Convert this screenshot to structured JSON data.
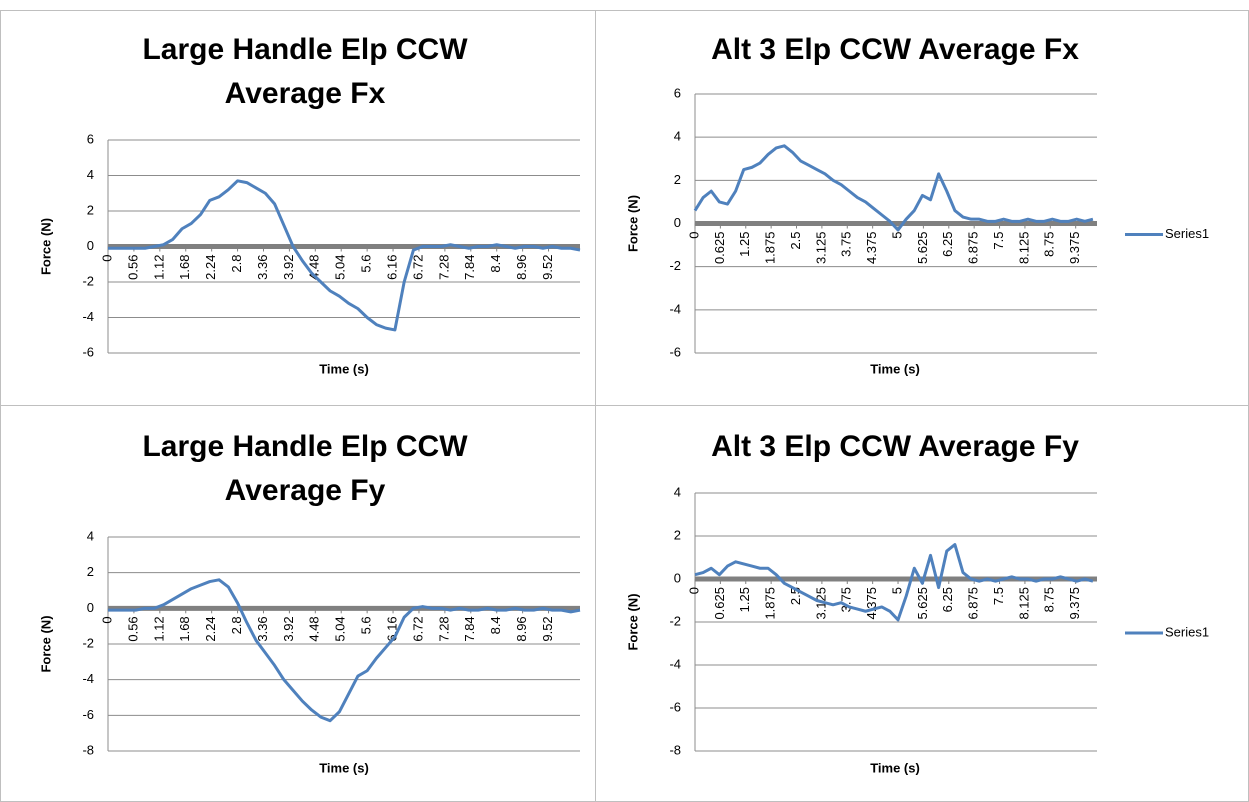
{
  "chart_data": [
    {
      "type": "line",
      "title": "Large Handle Elp CCW Average Fx",
      "x_label": "Time (s)",
      "y_label": "Force (N)",
      "x": [
        0,
        0.2,
        0.4,
        0.6,
        0.8,
        1.0,
        1.2,
        1.4,
        1.6,
        1.8,
        2.0,
        2.2,
        2.4,
        2.6,
        2.8,
        3.0,
        3.2,
        3.4,
        3.6,
        3.8,
        4.0,
        4.2,
        4.4,
        4.6,
        4.8,
        5.0,
        5.2,
        5.4,
        5.6,
        5.8,
        6.0,
        6.2,
        6.4,
        6.6,
        6.8,
        7.0,
        7.2,
        7.4,
        7.6,
        7.8,
        8.0,
        8.2,
        8.4,
        8.6,
        8.8,
        9.0,
        9.2,
        9.4,
        9.6,
        9.8,
        10.0,
        10.2
      ],
      "series": [
        {
          "color": "#4f81bd",
          "values": [
            -0.1,
            -0.1,
            -0.1,
            -0.1,
            -0.1,
            0,
            0.1,
            0.4,
            1.0,
            1.3,
            1.8,
            2.6,
            2.8,
            3.2,
            3.7,
            3.6,
            3.3,
            3.0,
            2.4,
            1.2,
            0,
            -0.8,
            -1.5,
            -2.0,
            -2.5,
            -2.8,
            -3.2,
            -3.5,
            -4.0,
            -4.4,
            -4.6,
            -4.7,
            -2.0,
            -0.2,
            0,
            0,
            0,
            0.1,
            0,
            -0.1,
            0,
            0,
            0.1,
            0,
            -0.1,
            0,
            0,
            -0.1,
            0,
            -0.1,
            -0.1,
            -0.2
          ]
        }
      ],
      "xlim": [
        0,
        10.2
      ],
      "xticks": [
        0,
        0.56,
        1.12,
        1.68,
        2.24,
        2.8,
        3.36,
        3.92,
        4.48,
        5.04,
        5.6,
        6.16,
        6.72,
        7.28,
        7.84,
        8.4,
        8.96,
        9.52
      ],
      "ylim": [
        -6,
        6
      ],
      "yticks": [
        -6,
        -4,
        -2,
        0,
        2,
        4,
        6
      ],
      "grid": true
    },
    {
      "type": "line",
      "title": "Alt 3 Elp CCW Average Fx",
      "x_label": "Time (s)",
      "y_label": "Force (N)",
      "x": [
        0,
        0.2,
        0.4,
        0.6,
        0.8,
        1.0,
        1.2,
        1.4,
        1.6,
        1.8,
        2.0,
        2.2,
        2.4,
        2.6,
        2.8,
        3.0,
        3.2,
        3.4,
        3.6,
        3.8,
        4.0,
        4.2,
        4.4,
        4.6,
        4.8,
        5.0,
        5.2,
        5.4,
        5.6,
        5.8,
        6.0,
        6.2,
        6.4,
        6.6,
        6.8,
        7.0,
        7.2,
        7.4,
        7.6,
        7.8,
        8.0,
        8.2,
        8.4,
        8.6,
        8.8,
        9.0,
        9.2,
        9.4,
        9.6,
        9.8
      ],
      "series": [
        {
          "name": "Series1",
          "color": "#4f81bd",
          "values": [
            0.6,
            1.2,
            1.5,
            1.0,
            0.9,
            1.5,
            2.5,
            2.6,
            2.8,
            3.2,
            3.5,
            3.6,
            3.3,
            2.9,
            2.7,
            2.5,
            2.3,
            2.0,
            1.8,
            1.5,
            1.2,
            1.0,
            0.7,
            0.4,
            0.1,
            -0.3,
            0.2,
            0.6,
            1.3,
            1.1,
            2.3,
            1.5,
            0.6,
            0.3,
            0.2,
            0.2,
            0.1,
            0.1,
            0.2,
            0.1,
            0.1,
            0.2,
            0.1,
            0.1,
            0.2,
            0.1,
            0.1,
            0.2,
            0.1,
            0.2
          ]
        }
      ],
      "xlim": [
        0,
        9.9
      ],
      "xticks": [
        0,
        0.625,
        1.25,
        1.875,
        2.5,
        3.125,
        3.75,
        4.375,
        5,
        5.625,
        6.25,
        6.875,
        7.5,
        8.125,
        8.75,
        9.375
      ],
      "ylim": [
        -6,
        6
      ],
      "yticks": [
        -6,
        -4,
        -2,
        0,
        2,
        4,
        6
      ],
      "grid": true,
      "legend": "right"
    },
    {
      "type": "line",
      "title": "Large Handle Elp CCW Average Fy",
      "x_label": "Time (s)",
      "y_label": "Force (N)",
      "x": [
        0,
        0.2,
        0.4,
        0.6,
        0.8,
        1.0,
        1.2,
        1.4,
        1.6,
        1.8,
        2.0,
        2.2,
        2.4,
        2.6,
        2.8,
        3.0,
        3.2,
        3.4,
        3.6,
        3.8,
        4.0,
        4.2,
        4.4,
        4.6,
        4.8,
        5.0,
        5.2,
        5.4,
        5.6,
        5.8,
        6.0,
        6.2,
        6.4,
        6.6,
        6.8,
        7.0,
        7.2,
        7.4,
        7.6,
        7.8,
        8.0,
        8.2,
        8.4,
        8.6,
        8.8,
        9.0,
        9.2,
        9.4,
        9.6,
        9.8,
        10.0,
        10.2
      ],
      "series": [
        {
          "color": "#4f81bd",
          "values": [
            -0.1,
            -0.1,
            -0.1,
            -0.1,
            0,
            0,
            0.2,
            0.5,
            0.8,
            1.1,
            1.3,
            1.5,
            1.6,
            1.2,
            0.3,
            -0.8,
            -1.8,
            -2.5,
            -3.2,
            -4.0,
            -4.6,
            -5.2,
            -5.7,
            -6.1,
            -6.3,
            -5.8,
            -4.8,
            -3.8,
            -3.5,
            -2.8,
            -2.2,
            -1.6,
            -0.5,
            0,
            0.1,
            0,
            0,
            -0.1,
            0,
            -0.1,
            -0.1,
            0,
            -0.1,
            -0.1,
            0,
            -0.1,
            -0.1,
            0,
            -0.1,
            -0.1,
            -0.2,
            -0.1
          ]
        }
      ],
      "xlim": [
        0,
        10.2
      ],
      "xticks": [
        0,
        0.56,
        1.12,
        1.68,
        2.24,
        2.8,
        3.36,
        3.92,
        4.48,
        5.04,
        5.6,
        6.16,
        6.72,
        7.28,
        7.84,
        8.4,
        8.96,
        9.52
      ],
      "ylim": [
        -8,
        4
      ],
      "yticks": [
        -8,
        -6,
        -4,
        -2,
        0,
        2,
        4
      ],
      "grid": true
    },
    {
      "type": "line",
      "title": "Alt 3 Elp CCW Average Fy",
      "x_label": "Time (s)",
      "y_label": "Force (N)",
      "x": [
        0,
        0.2,
        0.4,
        0.6,
        0.8,
        1.0,
        1.2,
        1.4,
        1.6,
        1.8,
        2.0,
        2.2,
        2.4,
        2.6,
        2.8,
        3.0,
        3.2,
        3.4,
        3.6,
        3.8,
        4.0,
        4.2,
        4.4,
        4.6,
        4.8,
        5.0,
        5.2,
        5.4,
        5.6,
        5.8,
        6.0,
        6.2,
        6.4,
        6.6,
        6.8,
        7.0,
        7.2,
        7.4,
        7.6,
        7.8,
        8.0,
        8.2,
        8.4,
        8.6,
        8.8,
        9.0,
        9.2,
        9.4,
        9.6,
        9.8
      ],
      "series": [
        {
          "name": "Series1",
          "color": "#4f81bd",
          "values": [
            0.2,
            0.3,
            0.5,
            0.2,
            0.6,
            0.8,
            0.7,
            0.6,
            0.5,
            0.5,
            0.2,
            -0.2,
            -0.4,
            -0.6,
            -0.8,
            -1.0,
            -1.1,
            -1.2,
            -1.1,
            -1.3,
            -1.4,
            -1.5,
            -1.4,
            -1.3,
            -1.5,
            -1.9,
            -0.8,
            0.5,
            -0.2,
            1.1,
            -0.4,
            1.3,
            1.6,
            0.3,
            0,
            -0.1,
            0,
            -0.1,
            0,
            0.1,
            0,
            0,
            -0.1,
            0,
            0,
            0.1,
            0,
            -0.1,
            0,
            -0.1
          ]
        }
      ],
      "xlim": [
        0,
        9.9
      ],
      "xticks": [
        0,
        0.625,
        1.25,
        1.875,
        2.5,
        3.125,
        3.75,
        4.375,
        5,
        5.625,
        6.25,
        6.875,
        7.5,
        8.125,
        8.75,
        9.375
      ],
      "ylim": [
        -8,
        4
      ],
      "yticks": [
        -8,
        -6,
        -4,
        -2,
        0,
        2,
        4
      ],
      "grid": true,
      "legend": "right"
    }
  ]
}
